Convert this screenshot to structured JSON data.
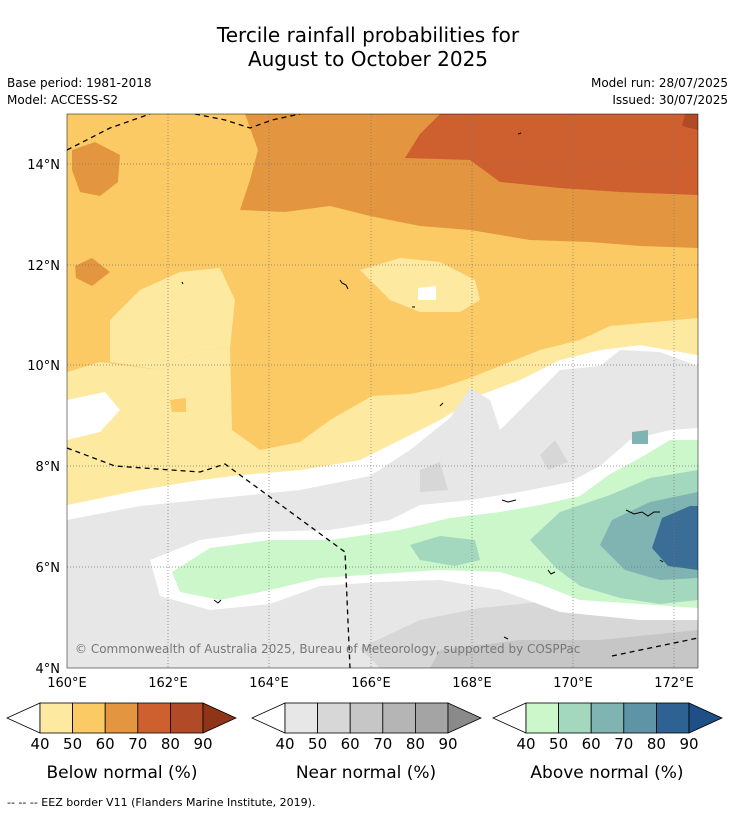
{
  "title": {
    "line1": "Tercile rainfall probabilities for",
    "line2": "August to October 2025"
  },
  "meta": {
    "base_period": "Base period: 1981-2018",
    "model": "Model: ACCESS-S2",
    "model_run": "Model run: 28/07/2025",
    "issued": "Issued: 30/07/2025"
  },
  "map": {
    "lat_labels": [
      "14°N",
      "12°N",
      "10°N",
      "8°N",
      "6°N",
      "4°N"
    ],
    "lon_labels": [
      "160°E",
      "162°E",
      "164°E",
      "166°E",
      "168°E",
      "170°E",
      "172°E"
    ],
    "copyright": "© Commonwealth of Australia 2025, Bureau of Meteorology, supported by COSPPac"
  },
  "legends": [
    {
      "name": "Below normal (%)",
      "levels": [
        "40",
        "50",
        "60",
        "70",
        "80",
        "90"
      ],
      "colors": [
        "#fde9a0",
        "#fcca65",
        "#e3963f",
        "#ce602f",
        "#b14a27",
        "#8e3517"
      ]
    },
    {
      "name": "Near normal (%)",
      "levels": [
        "40",
        "50",
        "60",
        "70",
        "80",
        "90"
      ],
      "colors": [
        "#e7e7e7",
        "#d7d7d7",
        "#c6c6c6",
        "#b5b5b5",
        "#a4a4a4",
        "#8a8a8a"
      ]
    },
    {
      "name": "Above normal (%)",
      "levels": [
        "40",
        "50",
        "60",
        "70",
        "80",
        "90"
      ],
      "colors": [
        "#cbf7cb",
        "#a3d8be",
        "#7fb4b2",
        "#5e94a6",
        "#2e6292",
        "#1e4f87"
      ]
    }
  ],
  "footnote": "--  --  -- EEZ border V11 (Flanders Marine Institute, 2019)."
}
